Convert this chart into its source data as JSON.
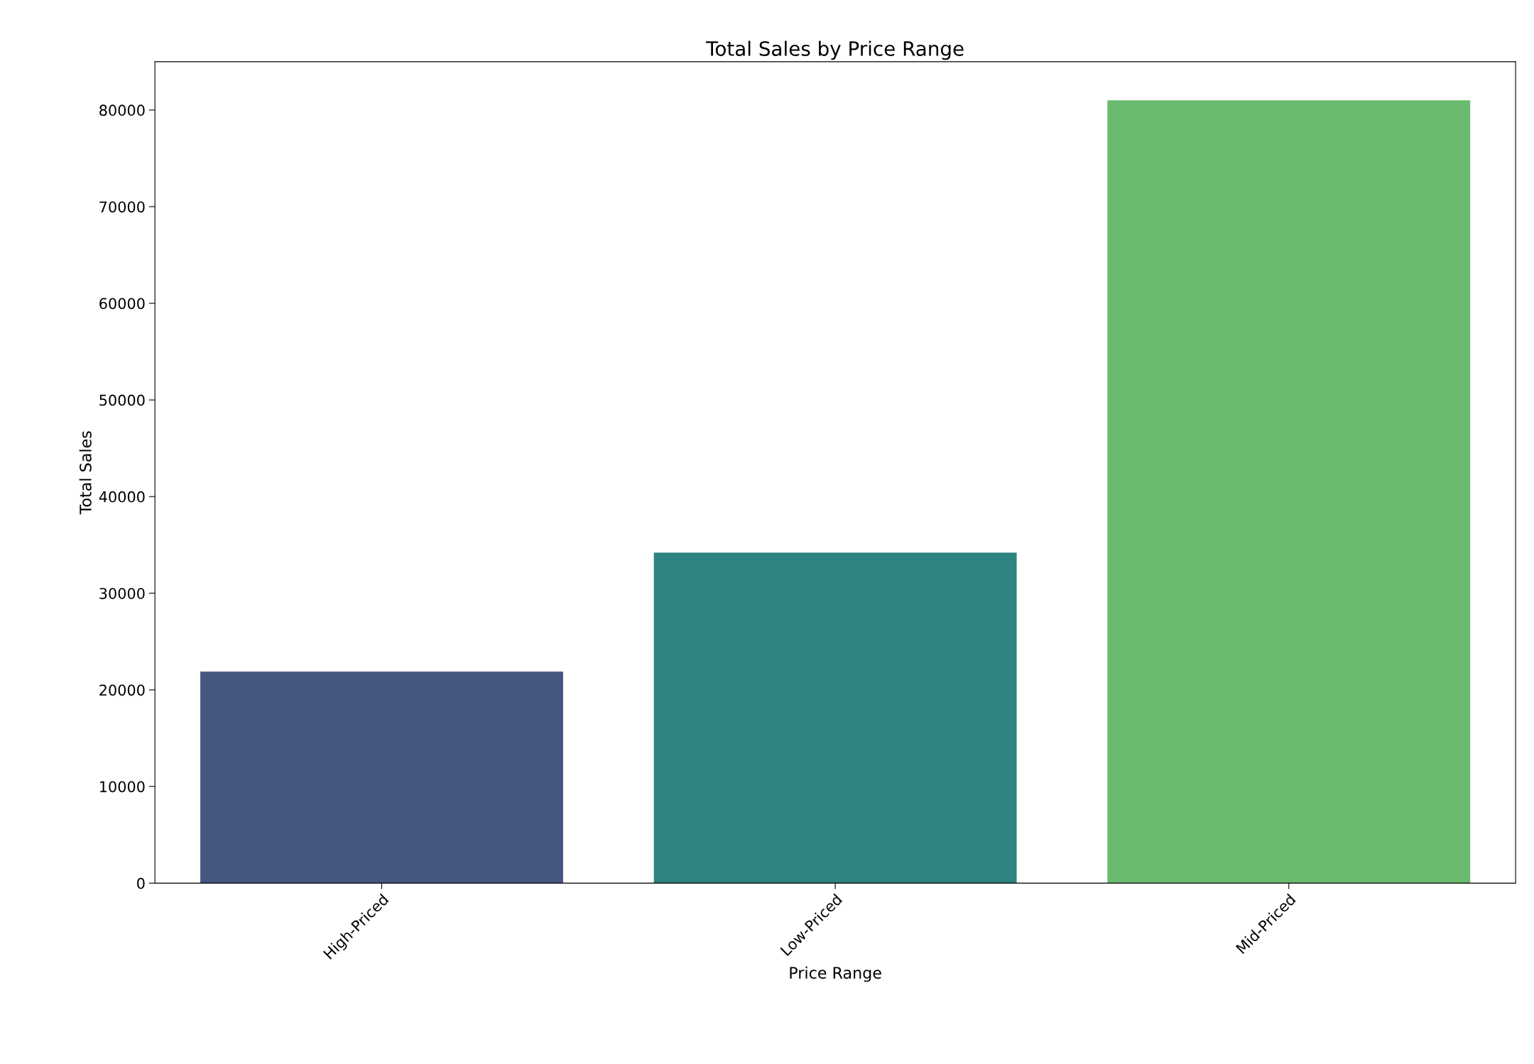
{
  "chart_data": {
    "type": "bar",
    "title": "Total Sales by Price Range",
    "xlabel": "Price Range",
    "ylabel": "Total Sales",
    "categories": [
      "High-Priced",
      "Low-Priced",
      "Mid-Priced"
    ],
    "values": [
      21900,
      34200,
      81000
    ],
    "colors": [
      "#46577f",
      "#2e8480",
      "#6bbb6e"
    ],
    "ylim": [
      0,
      85000
    ],
    "yticks": [
      0,
      10000,
      20000,
      30000,
      40000,
      50000,
      60000,
      70000,
      80000
    ],
    "grid": false,
    "legend": false
  }
}
